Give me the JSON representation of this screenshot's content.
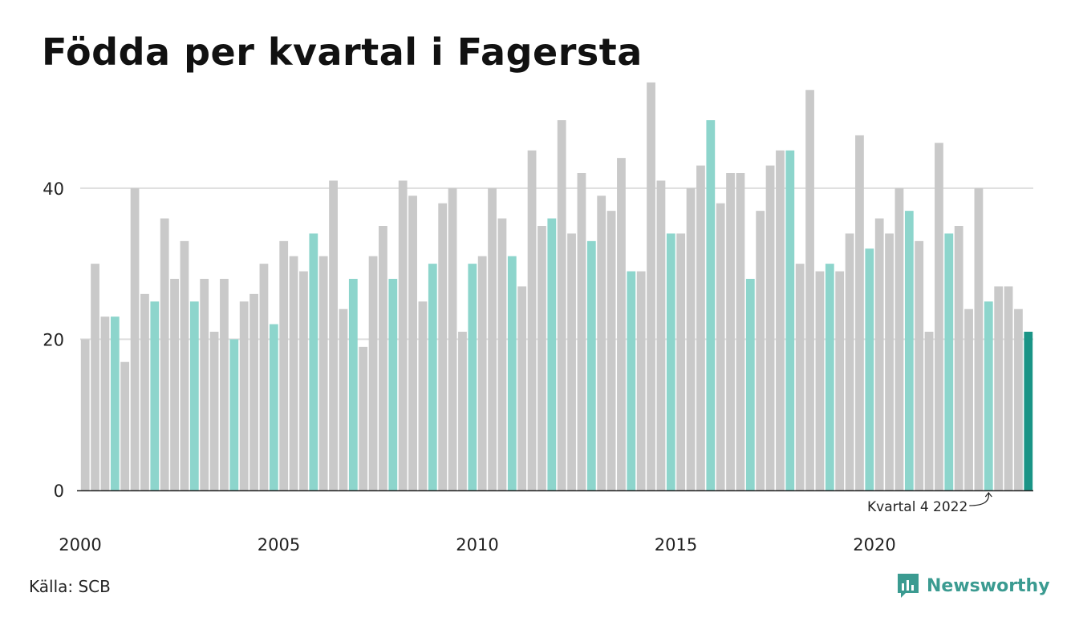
{
  "title": "Födda per kvartal i Fagersta",
  "source": "Källa: SCB",
  "brand": "Newsworthy",
  "colors": {
    "default_bar": "#c9c9c9",
    "quarter4_bar": "#8dd5cc",
    "latest_bar": "#1a9486",
    "gridline": "#dddddd",
    "axis": "#222222",
    "brand": "#3b9b91"
  },
  "chart_data": {
    "type": "bar",
    "title": "Födda per kvartal i Fagersta",
    "xlabel": "",
    "ylabel": "",
    "ylim": [
      0,
      56
    ],
    "yticks": [
      0,
      20,
      40
    ],
    "grid": true,
    "x_tick_labels": [
      "2000",
      "2005",
      "2010",
      "2015",
      "2020"
    ],
    "start_year": 2000,
    "highlight_quarter": 4,
    "annotation": "Kvartal 4 2022",
    "annotation_target": "2022 Q4",
    "categories": [
      "2000 Q1",
      "2000 Q2",
      "2000 Q3",
      "2000 Q4",
      "2001 Q1",
      "2001 Q2",
      "2001 Q3",
      "2001 Q4",
      "2002 Q1",
      "2002 Q2",
      "2002 Q3",
      "2002 Q4",
      "2003 Q1",
      "2003 Q2",
      "2003 Q3",
      "2003 Q4",
      "2004 Q1",
      "2004 Q2",
      "2004 Q3",
      "2004 Q4",
      "2005 Q1",
      "2005 Q2",
      "2005 Q3",
      "2005 Q4",
      "2006 Q1",
      "2006 Q2",
      "2006 Q3",
      "2006 Q4",
      "2007 Q1",
      "2007 Q2",
      "2007 Q3",
      "2007 Q4",
      "2008 Q1",
      "2008 Q2",
      "2008 Q3",
      "2008 Q4",
      "2009 Q1",
      "2009 Q2",
      "2009 Q3",
      "2009 Q4",
      "2010 Q1",
      "2010 Q2",
      "2010 Q3",
      "2010 Q4",
      "2011 Q1",
      "2011 Q2",
      "2011 Q3",
      "2011 Q4",
      "2012 Q1",
      "2012 Q2",
      "2012 Q3",
      "2012 Q4",
      "2013 Q1",
      "2013 Q2",
      "2013 Q3",
      "2013 Q4",
      "2014 Q1",
      "2014 Q2",
      "2014 Q3",
      "2014 Q4",
      "2015 Q1",
      "2015 Q2",
      "2015 Q3",
      "2015 Q4",
      "2016 Q1",
      "2016 Q2",
      "2016 Q3",
      "2016 Q4",
      "2017 Q1",
      "2017 Q2",
      "2017 Q3",
      "2017 Q4",
      "2018 Q1",
      "2018 Q2",
      "2018 Q3",
      "2018 Q4",
      "2019 Q1",
      "2019 Q2",
      "2019 Q3",
      "2019 Q4",
      "2020 Q1",
      "2020 Q2",
      "2020 Q3",
      "2020 Q4",
      "2021 Q1",
      "2021 Q2",
      "2021 Q3",
      "2021 Q4",
      "2022 Q1",
      "2022 Q2",
      "2022 Q3",
      "2022 Q4",
      "2023 Q1",
      "2023 Q2",
      "2023 Q3",
      "2023 Q4"
    ],
    "values": [
      20,
      30,
      23,
      23,
      17,
      40,
      26,
      25,
      36,
      28,
      33,
      25,
      28,
      21,
      28,
      20,
      25,
      26,
      30,
      22,
      33,
      31,
      29,
      34,
      31,
      41,
      24,
      28,
      19,
      31,
      35,
      28,
      41,
      39,
      25,
      30,
      38,
      40,
      21,
      30,
      31,
      40,
      36,
      31,
      27,
      45,
      35,
      36,
      49,
      34,
      42,
      33,
      39,
      37,
      44,
      29,
      29,
      54,
      41,
      34,
      34,
      40,
      43,
      49,
      38,
      42,
      42,
      28,
      37,
      43,
      45,
      45,
      30,
      53,
      29,
      30,
      29,
      34,
      47,
      32,
      36,
      34,
      40,
      37,
      33,
      21,
      46,
      34,
      35,
      24,
      40,
      25,
      27,
      27,
      24,
      21
    ]
  }
}
